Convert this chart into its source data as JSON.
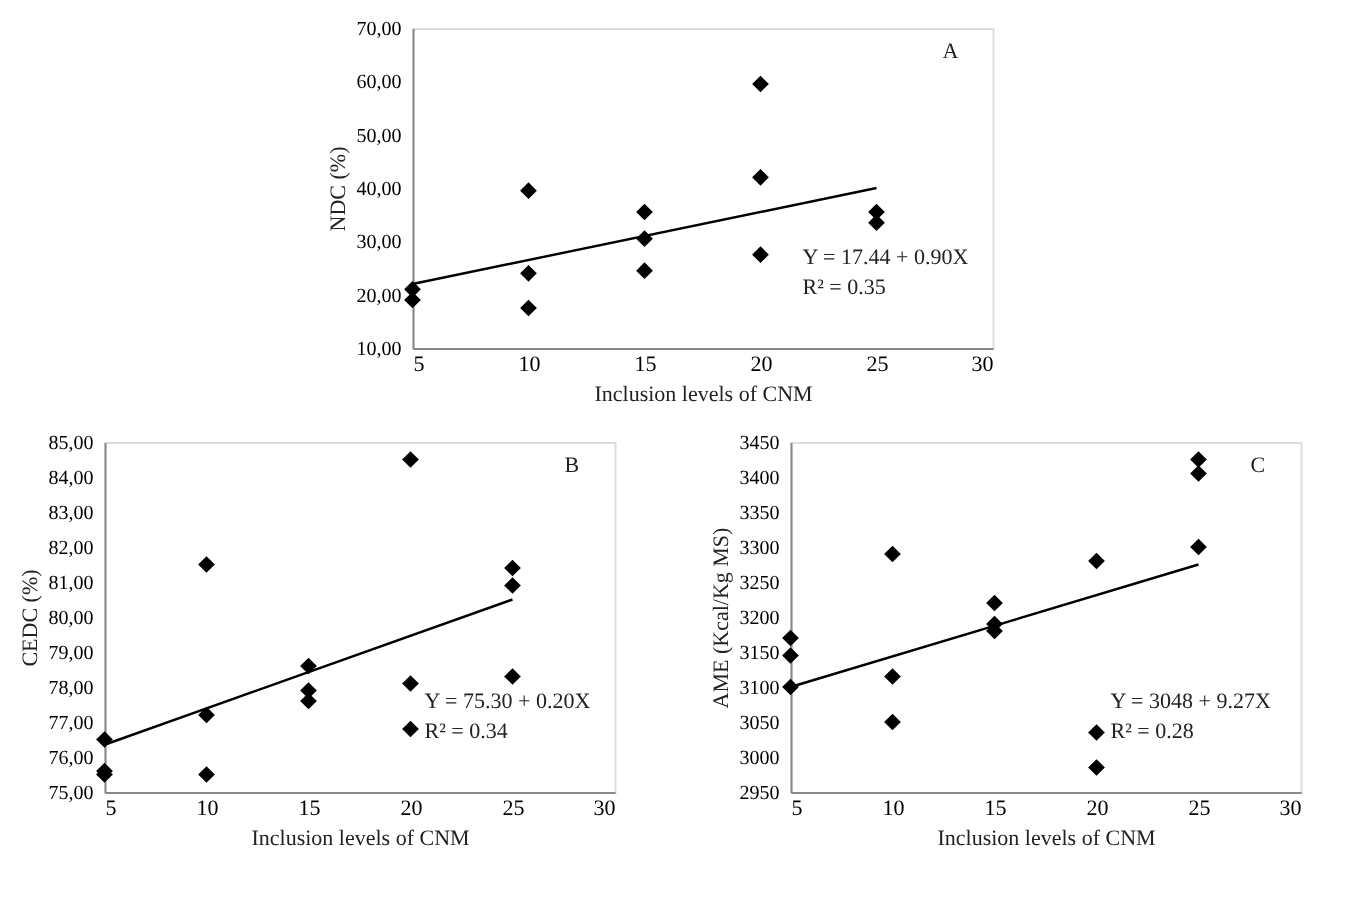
{
  "chart_data": [
    {
      "type": "scatter",
      "xlabel": "Inclusion levels of CNM",
      "ylabel": "NDC (%)",
      "xlim": [
        5,
        30
      ],
      "xticks": [
        5,
        10,
        15,
        20,
        25,
        30
      ],
      "ylim": [
        10,
        70
      ],
      "yticks": [
        {
          "value": 10,
          "label": "10,00"
        },
        {
          "value": 20,
          "label": "20,00"
        },
        {
          "value": 30,
          "label": "30,00"
        },
        {
          "value": 40,
          "label": "40,00"
        },
        {
          "value": 50,
          "label": "50,00"
        },
        {
          "value": 60,
          "label": "60,00"
        },
        {
          "value": 70,
          "label": "70,00"
        }
      ],
      "grid": false,
      "line_style": "solid",
      "annotations": [
        "A",
        "Y = 17.44 + 0.90X",
        "R² = 0.35"
      ],
      "series": [
        {
          "color": "#000000",
          "marker": "diamond",
          "x": [
            5,
            5,
            10,
            10,
            10,
            15,
            15,
            15,
            20,
            20,
            20,
            25,
            25
          ],
          "values": [
            21,
            19,
            39.5,
            24,
            17.5,
            35.5,
            30.5,
            24.5,
            59.5,
            42,
            27.5,
            35.5,
            33.5
          ]
        },
        {
          "type": "line",
          "color": "#000000",
          "x": [
            5,
            25
          ],
          "values": [
            22,
            40
          ]
        }
      ]
    },
    {
      "type": "scatter",
      "xlabel": "Inclusion levels of CNM",
      "ylabel": "CEDC (%)",
      "xlim": [
        5,
        30
      ],
      "xticks": [
        5,
        10,
        15,
        20,
        25,
        30
      ],
      "ylim": [
        75,
        85
      ],
      "yticks": [
        {
          "value": 75,
          "label": "75,00"
        },
        {
          "value": 76,
          "label": "76,00"
        },
        {
          "value": 77,
          "label": "77,00"
        },
        {
          "value": 78,
          "label": "78,00"
        },
        {
          "value": 79,
          "label": "79,00"
        },
        {
          "value": 80,
          "label": "80,00"
        },
        {
          "value": 81,
          "label": "81,00"
        },
        {
          "value": 82,
          "label": "82,00"
        },
        {
          "value": 83,
          "label": "83,00"
        },
        {
          "value": 84,
          "label": "84,00"
        },
        {
          "value": 85,
          "label": "85,00"
        }
      ],
      "grid": false,
      "line_style": "solid",
      "annotations": [
        "B",
        "Y = 75.30 + 0.20X",
        "R² = 0.34"
      ],
      "series": [
        {
          "color": "#000000",
          "marker": "diamond",
          "x": [
            5,
            5,
            5,
            10,
            10,
            10,
            15,
            15,
            15,
            20,
            20,
            20,
            25,
            25,
            25
          ],
          "values": [
            76.5,
            75.6,
            75.5,
            81.5,
            77.2,
            75.5,
            78.6,
            77.9,
            77.6,
            84.5,
            78.1,
            76.8,
            81.4,
            80.9,
            78.3
          ]
        },
        {
          "type": "line",
          "color": "#000000",
          "x": [
            5,
            25
          ],
          "values": [
            76.35,
            80.5
          ]
        }
      ]
    },
    {
      "type": "scatter",
      "xlabel": "Inclusion levels of CNM",
      "ylabel": "AME (Kcal/Kg MS)",
      "xlim": [
        5,
        30
      ],
      "xticks": [
        5,
        10,
        15,
        20,
        25,
        30
      ],
      "ylim": [
        2950,
        3450
      ],
      "yticks": [
        2950,
        3000,
        3050,
        3100,
        3150,
        3200,
        3250,
        3300,
        3350,
        3400,
        3450
      ],
      "grid": false,
      "line_style": "solid",
      "annotations": [
        "C",
        "Y = 3048 + 9.27X",
        "R² = 0.28"
      ],
      "series": [
        {
          "color": "#000000",
          "marker": "diamond",
          "x": [
            5,
            5,
            5,
            10,
            10,
            10,
            15,
            15,
            15,
            20,
            20,
            20,
            25,
            25,
            25
          ],
          "values": [
            3170,
            3145,
            3100,
            3290,
            3115,
            3050,
            3220,
            3190,
            3180,
            3280,
            3035,
            2985,
            3425,
            3405,
            3300
          ]
        },
        {
          "type": "line",
          "color": "#000000",
          "x": [
            5,
            25
          ],
          "values": [
            3100,
            3275
          ]
        }
      ]
    }
  ]
}
